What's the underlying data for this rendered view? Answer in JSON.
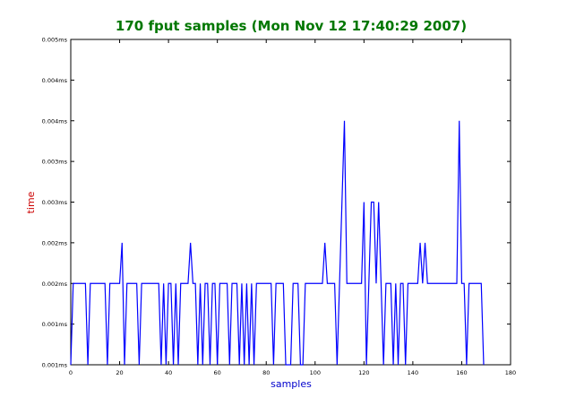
{
  "chart_data": {
    "type": "line",
    "title": "170 fput samples (Mon Nov 12 17:40:29 2007)",
    "xlabel": "samples",
    "ylabel": "time",
    "xlim": [
      0,
      180
    ],
    "x_ticks": [
      0,
      20,
      40,
      60,
      80,
      100,
      120,
      140,
      160,
      180
    ],
    "y_tick_labels": [
      "0.001ms",
      "0.001ms",
      "0.002ms",
      "0.002ms",
      "0.003ms",
      "0.003ms",
      "0.004ms",
      "0.004ms",
      "0.005ms"
    ],
    "grid": false,
    "legend": "none",
    "colors": {
      "title": "#007700",
      "xlabel": "#0000cc",
      "ylabel": "#cc0000",
      "series": "#0000ff",
      "axes": "#000000"
    },
    "series": [
      {
        "y_levels": [
          0,
          2,
          2,
          2,
          2,
          2,
          2,
          0,
          2,
          2,
          2,
          2,
          2,
          2,
          2,
          0,
          2,
          2,
          2,
          2,
          2,
          3,
          0,
          2,
          2,
          2,
          2,
          2,
          0,
          2,
          2,
          2,
          2,
          2,
          2,
          2,
          2,
          0,
          2,
          0,
          2,
          2,
          0,
          2,
          0,
          2,
          2,
          2,
          2,
          3,
          2,
          2,
          0,
          2,
          0,
          2,
          2,
          0,
          2,
          2,
          0,
          2,
          2,
          2,
          2,
          0,
          2,
          2,
          2,
          0,
          2,
          0,
          2,
          0,
          2,
          0,
          2,
          2,
          2,
          2,
          2,
          2,
          2,
          0,
          2,
          2,
          2,
          2,
          0,
          0,
          0,
          2,
          2,
          2,
          0,
          0,
          2,
          2,
          2,
          2,
          2,
          2,
          2,
          2,
          3,
          2,
          2,
          2,
          2,
          0,
          2,
          4,
          6,
          2,
          2,
          2,
          2,
          2,
          2,
          2,
          4,
          0,
          2,
          4,
          4,
          2,
          4,
          2,
          0,
          2,
          2,
          2,
          0,
          2,
          0,
          2,
          2,
          0,
          2,
          2,
          2,
          2,
          2,
          3,
          2,
          3,
          2,
          2,
          2,
          2,
          2,
          2,
          2,
          2,
          2,
          2,
          2,
          2,
          2,
          6,
          2,
          2,
          0,
          2,
          2,
          2,
          2,
          2,
          2,
          0
        ]
      }
    ]
  }
}
